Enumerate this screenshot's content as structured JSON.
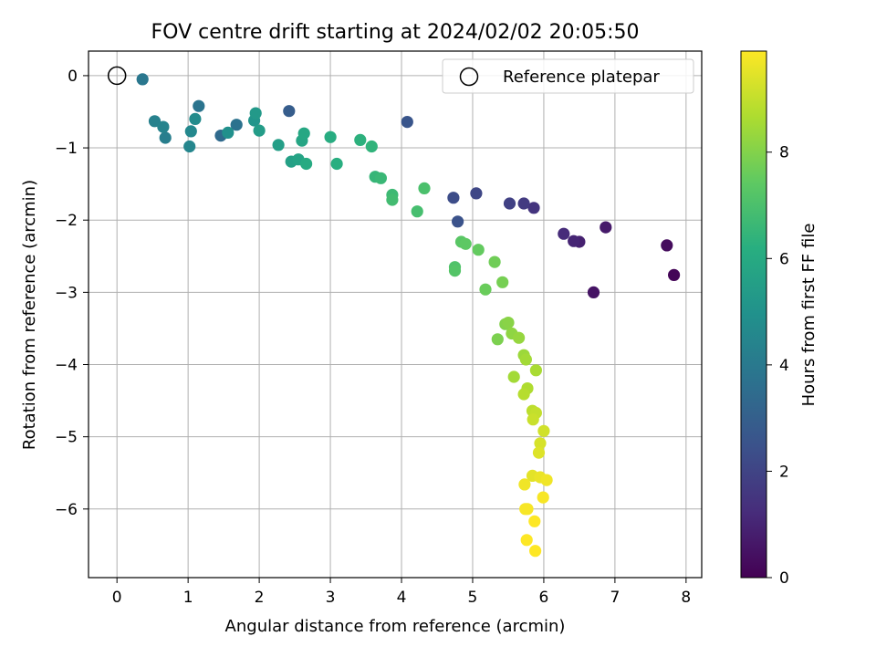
{
  "chart_data": {
    "type": "scatter",
    "title": "FOV centre drift starting at 2024/02/02 20:05:50",
    "xlabel": "Angular distance from reference (arcmin)",
    "ylabel": "Rotation from reference (arcmin)",
    "xlim": [
      -0.4,
      8.22
    ],
    "ylim": [
      -6.95,
      0.34
    ],
    "xticks": [
      0,
      1,
      2,
      3,
      4,
      5,
      6,
      7,
      8
    ],
    "yticks": [
      0,
      -1,
      -2,
      -3,
      -4,
      -5,
      -6
    ],
    "grid": true,
    "legend": {
      "placement": "top-right",
      "entries": [
        {
          "label": "Reference platepar",
          "marker": "open-circle"
        }
      ]
    },
    "reference_point": {
      "x": 0,
      "y": 0
    },
    "colorbar": {
      "label": "Hours from first FF file",
      "colormap": "viridis",
      "range": [
        0,
        9.9
      ],
      "ticks": [
        0,
        2,
        4,
        6,
        8
      ]
    },
    "points": [
      [
        7.83,
        -2.76,
        0.1
      ],
      [
        7.73,
        -2.35,
        0.3
      ],
      [
        6.7,
        -3.0,
        0.5
      ],
      [
        6.87,
        -2.1,
        0.7
      ],
      [
        6.5,
        -2.3,
        0.9
      ],
      [
        6.42,
        -2.29,
        1.0
      ],
      [
        6.28,
        -2.19,
        1.2
      ],
      [
        5.86,
        -1.83,
        1.5
      ],
      [
        5.72,
        -1.77,
        1.7
      ],
      [
        5.52,
        -1.77,
        1.9
      ],
      [
        5.05,
        -1.63,
        2.1
      ],
      [
        4.73,
        -1.69,
        2.3
      ],
      [
        4.79,
        -2.02,
        2.5
      ],
      [
        4.08,
        -0.64,
        2.6
      ],
      [
        2.42,
        -0.49,
        2.9
      ],
      [
        1.46,
        -0.83,
        3.4
      ],
      [
        1.68,
        -0.68,
        3.7
      ],
      [
        1.15,
        -0.42,
        3.8
      ],
      [
        0.36,
        -0.05,
        3.9
      ],
      [
        0.68,
        -0.86,
        4.2
      ],
      [
        0.53,
        -0.63,
        4.3
      ],
      [
        0.65,
        -0.71,
        4.4
      ],
      [
        1.02,
        -0.98,
        4.5
      ],
      [
        1.04,
        -0.77,
        4.6
      ],
      [
        1.1,
        -0.6,
        4.7
      ],
      [
        1.56,
        -0.79,
        4.9
      ],
      [
        1.93,
        -0.62,
        5.1
      ],
      [
        1.95,
        -0.52,
        5.3
      ],
      [
        2.0,
        -0.76,
        5.4
      ],
      [
        2.27,
        -0.96,
        5.5
      ],
      [
        2.45,
        -1.19,
        5.6
      ],
      [
        2.55,
        -1.16,
        5.7
      ],
      [
        2.6,
        -0.9,
        5.8
      ],
      [
        2.63,
        -0.8,
        5.9
      ],
      [
        2.66,
        -1.22,
        6.0
      ],
      [
        3.0,
        -0.85,
        6.1
      ],
      [
        3.09,
        -1.22,
        6.2
      ],
      [
        3.42,
        -0.89,
        6.3
      ],
      [
        3.58,
        -0.98,
        6.4
      ],
      [
        3.63,
        -1.4,
        6.5
      ],
      [
        3.71,
        -1.42,
        6.6
      ],
      [
        3.87,
        -1.65,
        6.7
      ],
      [
        3.87,
        -1.72,
        6.8
      ],
      [
        4.22,
        -1.88,
        6.9
      ],
      [
        4.32,
        -1.56,
        7.0
      ],
      [
        4.75,
        -2.65,
        7.1
      ],
      [
        4.75,
        -2.7,
        7.2
      ],
      [
        4.84,
        -2.3,
        7.3
      ],
      [
        4.9,
        -2.33,
        7.4
      ],
      [
        5.08,
        -2.41,
        7.5
      ],
      [
        5.18,
        -2.96,
        7.6
      ],
      [
        5.31,
        -2.58,
        7.7
      ],
      [
        5.42,
        -2.86,
        7.8
      ],
      [
        5.35,
        -3.65,
        7.9
      ],
      [
        5.46,
        -3.44,
        8.0
      ],
      [
        5.5,
        -3.42,
        8.1
      ],
      [
        5.55,
        -3.57,
        8.2
      ],
      [
        5.65,
        -3.63,
        8.3
      ],
      [
        5.72,
        -3.87,
        8.4
      ],
      [
        5.58,
        -4.17,
        8.5
      ],
      [
        5.75,
        -3.93,
        8.5
      ],
      [
        5.89,
        -4.08,
        8.6
      ],
      [
        5.77,
        -4.33,
        8.7
      ],
      [
        5.72,
        -4.41,
        8.8
      ],
      [
        5.84,
        -4.64,
        8.9
      ],
      [
        5.89,
        -4.67,
        9.0
      ],
      [
        5.85,
        -4.76,
        9.1
      ],
      [
        6.0,
        -4.92,
        9.2
      ],
      [
        5.95,
        -5.09,
        9.3
      ],
      [
        5.93,
        -5.22,
        9.4
      ],
      [
        5.84,
        -5.54,
        9.5
      ],
      [
        5.95,
        -5.56,
        9.6
      ],
      [
        6.04,
        -5.6,
        9.7
      ],
      [
        5.73,
        -5.66,
        9.7
      ],
      [
        5.99,
        -5.84,
        9.8
      ],
      [
        5.77,
        -6.0,
        9.8
      ],
      [
        5.74,
        -6.0,
        9.8
      ],
      [
        5.87,
        -6.17,
        9.9
      ],
      [
        5.76,
        -6.43,
        9.9
      ],
      [
        5.88,
        -6.58,
        9.9
      ]
    ]
  }
}
